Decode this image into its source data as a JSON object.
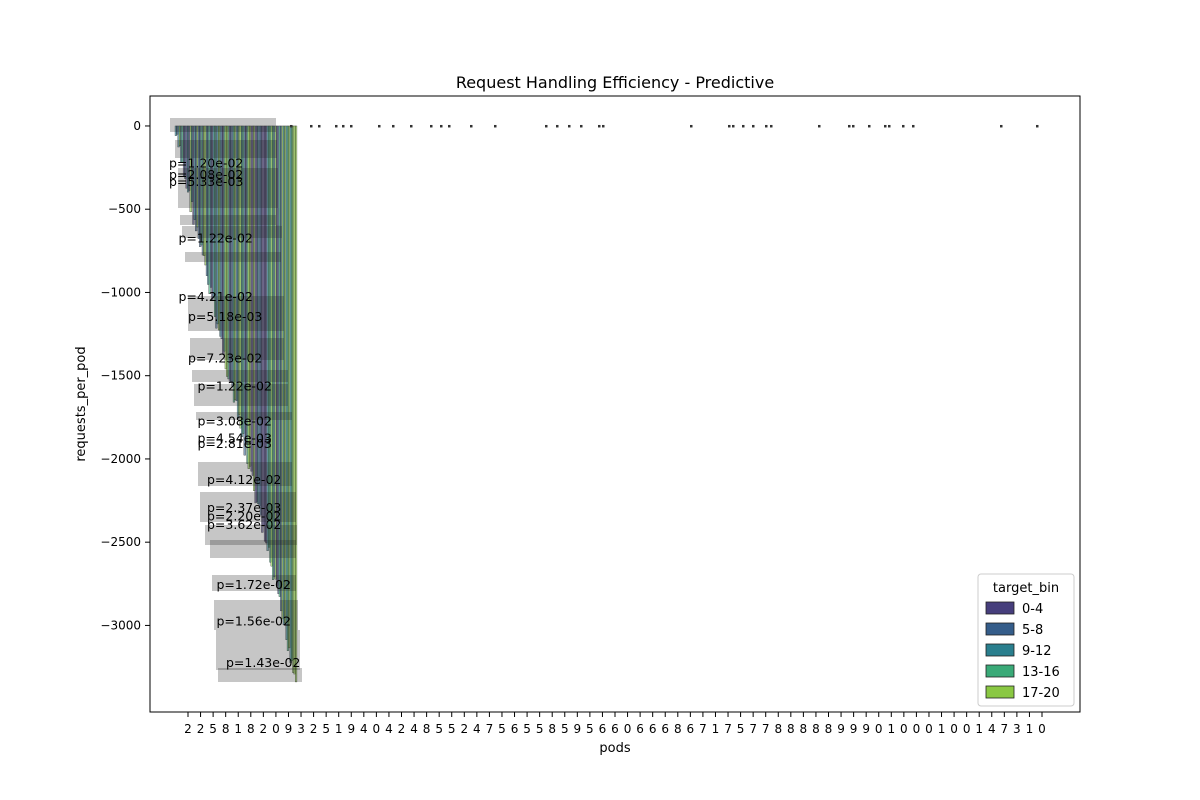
{
  "chart_data": {
    "type": "bar",
    "title": "Request Handling Efficiency - Predictive",
    "xlabel": "pods",
    "ylabel": "requests_per_pod",
    "ylim": [
      -3520,
      180
    ],
    "yticks": [
      0,
      -500,
      -1000,
      -1500,
      -2000,
      -2500,
      -3000
    ],
    "grid": false,
    "legend": {
      "title": "target_bin",
      "placement": "lower-right",
      "entries": [
        {
          "label": "0-4",
          "color": "#463e7c"
        },
        {
          "label": "5-8",
          "color": "#355d8a"
        },
        {
          "label": "9-12",
          "color": "#2a7f8e"
        },
        {
          "label": "13-16",
          "color": "#3aaa78"
        },
        {
          "label": "17-20",
          "color": "#8ac843"
        }
      ]
    },
    "x_tick_labels": [
      "2",
      "2",
      "5",
      "8",
      "1",
      "8",
      "2",
      "0",
      "9",
      "3",
      "2",
      "5",
      "1",
      "9",
      "4",
      "0",
      "4",
      "2",
      "4",
      "8",
      "5",
      "5",
      "2",
      "4",
      "7",
      "5",
      "6",
      "5",
      "5",
      "8",
      "5",
      "9",
      "5",
      "6",
      "6",
      "0",
      "6",
      "6",
      "6",
      "8",
      "6",
      "7",
      "1",
      "7",
      "5",
      "7",
      "7",
      "8",
      "8",
      "8",
      "8",
      "8",
      "9",
      "9",
      "9",
      "0",
      "1",
      "0",
      "0",
      "0",
      "1",
      "0",
      "0",
      "1",
      "4",
      "7",
      "3",
      "1",
      "0"
    ],
    "annotations_left_cluster": [
      {
        "x": 23,
        "y": -700,
        "label": "p=1.22e-02"
      },
      {
        "x": 25,
        "y": -1900,
        "label": "p=4.54e-03"
      },
      {
        "x": 25,
        "y": -1935,
        "label": "p=2.81e-03"
      },
      {
        "x": 26,
        "y": -2320,
        "label": "p=2.37e-03"
      },
      {
        "x": 26,
        "y": -2370,
        "label": "p=2.20e-02"
      },
      {
        "x": 26,
        "y": -2420,
        "label": "p=3.62e-02"
      },
      {
        "x": 27,
        "y": -2780,
        "label": "p=1.72e-02"
      },
      {
        "x": 28,
        "y": -3250,
        "label": "p=1.43e-02"
      },
      {
        "x": 23,
        "y": -1050,
        "label": "p=4.21e-02"
      },
      {
        "x": 24,
        "y": -1170,
        "label": "p=5.18e-03"
      },
      {
        "x": 24,
        "y": -1420,
        "label": "p=7.23e-02"
      },
      {
        "x": 25,
        "y": -1590,
        "label": "p=1.22e-02"
      },
      {
        "x": 22,
        "y": -250,
        "label": "p=1.20e-02"
      },
      {
        "x": 22,
        "y": -320,
        "label": "p=2.08e-02"
      },
      {
        "x": 22,
        "y": -360,
        "label": "p=5.33e-03"
      },
      {
        "x": 25,
        "y": -1800,
        "label": "p=3.08e-02"
      },
      {
        "x": 26,
        "y": -2150,
        "label": "p=4.12e-02"
      },
      {
        "x": 27,
        "y": -3000,
        "label": "p=1.56e-02"
      }
    ],
    "note": "Dense overlapping bars and p-value labels clustered between x=22 and x=30; sparse small markers at y≈0 further right."
  }
}
